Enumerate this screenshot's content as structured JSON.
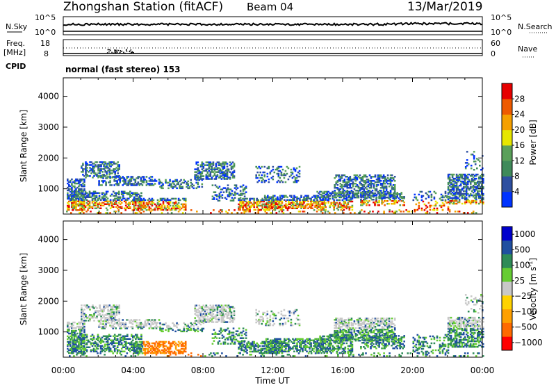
{
  "header": {
    "title": "Zhongshan Station (fitACF)",
    "beam": "Beam 04",
    "date": "13/Mar/2019"
  },
  "noise_panel": {
    "left_label": "N.Sky",
    "right_label": "N.Search",
    "left_ticks": [
      "10^5",
      "10^0"
    ],
    "right_ticks": [
      "10^5",
      "10^0"
    ]
  },
  "freq_panel": {
    "left_label": "Freq.",
    "left_unit": "[MHz]",
    "right_label": "Nave",
    "left_ticks": [
      "18",
      "8"
    ],
    "right_ticks": [
      "60",
      "0"
    ]
  },
  "cpid": {
    "label": "CPID",
    "value": "normal (fast stereo) 153"
  },
  "colors": {
    "power_scale": [
      "#0033ff",
      "#2e4fa0",
      "#3f8a5a",
      "#5aa05a",
      "#e6e600",
      "#f5a000",
      "#ee5a00",
      "#e60000"
    ],
    "velocity_scale": [
      "#ff0000",
      "#ff6a00",
      "#ffa000",
      "#ffd200",
      "#c8c8c8",
      "#66cc33",
      "#2e8b57",
      "#1f4fa0",
      "#0000cc"
    ]
  },
  "chart_data": [
    {
      "type": "heatmap",
      "name": "power",
      "ylabel": "Slant Range [km]",
      "y_ticks": [
        "1000",
        "2000",
        "3000",
        "4000"
      ],
      "colorbar_label": "Power [dB]",
      "colorbar_ticks": [
        "4",
        "8",
        "12",
        "16",
        "20",
        "24",
        "28"
      ],
      "x_ticks": [
        "00:00",
        "04:00",
        "08:00",
        "12:00",
        "16:00",
        "20:00",
        "00:00"
      ],
      "xlabel": "Time UT",
      "xlim": [
        0,
        24
      ],
      "ylim": [
        180,
        4600
      ],
      "clim": [
        0,
        32
      ]
    },
    {
      "type": "heatmap",
      "name": "velocity",
      "ylabel": "Slant Range [km]",
      "y_ticks": [
        "1000",
        "2000",
        "3000",
        "4000"
      ],
      "colorbar_label": "Velocity [m s",
      "colorbar_label_sup": "-1",
      "colorbar_label_end": "]",
      "colorbar_ticks": [
        "1000",
        "500",
        "100",
        "25",
        "−25",
        "−100",
        "−500",
        "−1000"
      ],
      "x_ticks": [
        "00:00",
        "04:00",
        "08:00",
        "12:00",
        "16:00",
        "20:00",
        "00:00"
      ],
      "xlabel": "Time UT",
      "xlim": [
        0,
        24
      ],
      "ylim": [
        180,
        4600
      ]
    }
  ]
}
